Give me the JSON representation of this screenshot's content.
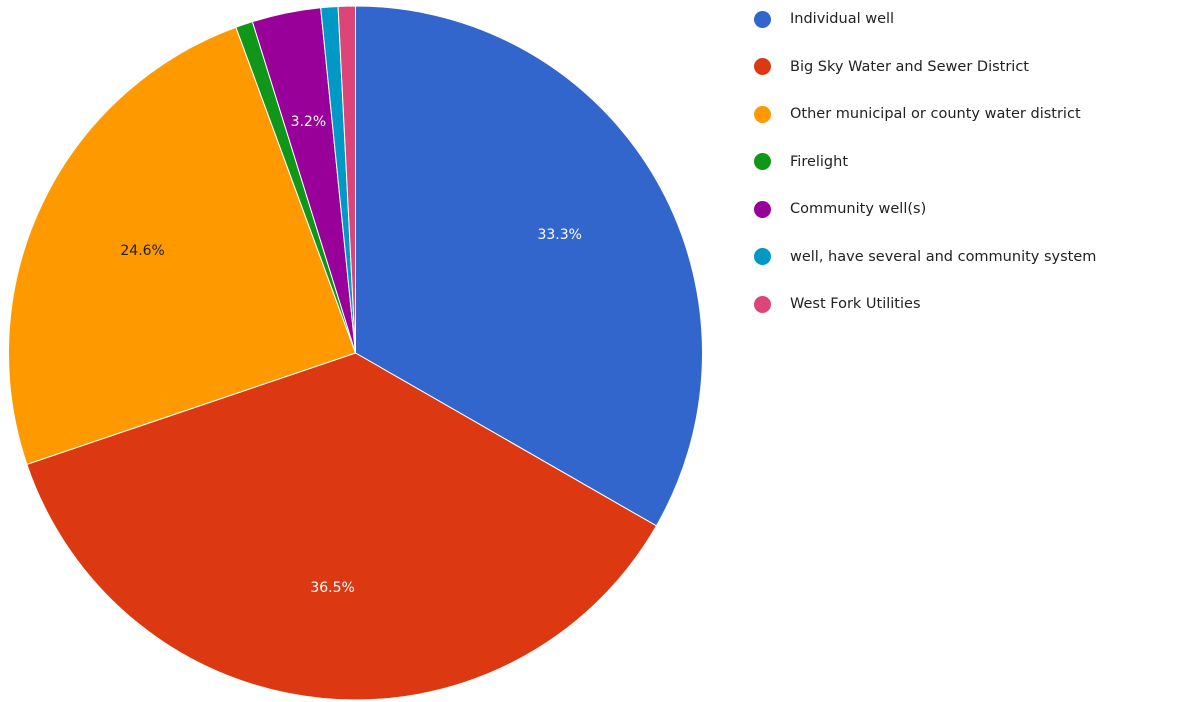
{
  "chart_data": {
    "type": "pie",
    "title": "",
    "legend_position": "right",
    "slices": [
      {
        "label": "Individual well",
        "value": 33.3,
        "color": "#3366cc",
        "data_label": "33.3%",
        "label_color": "#ffffff"
      },
      {
        "label": "Big Sky Water and Sewer District",
        "value": 36.5,
        "color": "#dc3912",
        "data_label": "36.5%",
        "label_color": "#ffffff"
      },
      {
        "label": "Other municipal or county water district",
        "value": 24.6,
        "color": "#ff9900",
        "data_label": "24.6%",
        "label_color": "#222222"
      },
      {
        "label": "Firelight",
        "value": 0.8,
        "color": "#109618",
        "data_label": "",
        "label_color": "#ffffff"
      },
      {
        "label": "Community well(s)",
        "value": 3.2,
        "color": "#990099",
        "data_label": "3.2%",
        "label_color": "#ffffff"
      },
      {
        "label": "well, have several and community system",
        "value": 0.8,
        "color": "#0099c6",
        "data_label": "",
        "label_color": "#ffffff"
      },
      {
        "label": "West Fork Utilities",
        "value": 0.8,
        "color": "#dd4477",
        "data_label": "",
        "label_color": "#ffffff"
      }
    ]
  }
}
